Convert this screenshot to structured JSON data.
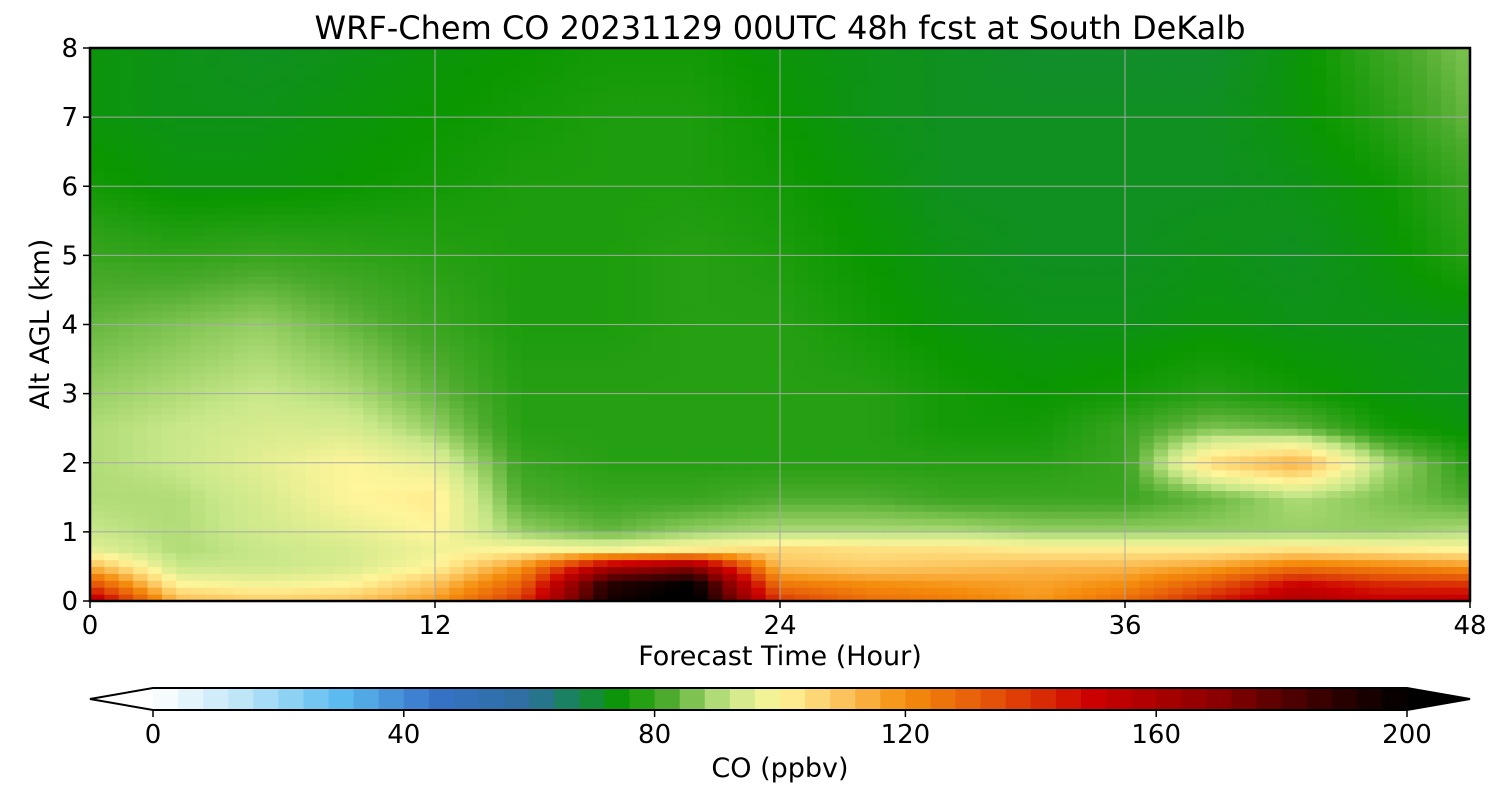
{
  "chart_data": {
    "type": "heatmap",
    "title": "WRF-Chem CO  20231129 00UTC 48h fcst at South DeKalb",
    "xlabel": "Forecast Time (Hour)",
    "ylabel": "Alt AGL (km)",
    "xlim": [
      0,
      48
    ],
    "ylim": [
      0,
      8
    ],
    "x_ticks": [
      0,
      12,
      24,
      36,
      48
    ],
    "y_ticks": [
      0,
      1,
      2,
      3,
      4,
      5,
      6,
      7,
      8
    ],
    "grid": true,
    "x_hours": [
      0,
      3,
      6,
      9,
      12,
      15,
      18,
      21,
      24,
      27,
      30,
      33,
      36,
      39,
      42,
      45,
      48
    ],
    "y_km": [
      0,
      0.25,
      0.5,
      0.75,
      1,
      1.5,
      2,
      2.5,
      3,
      4,
      5,
      6,
      7,
      8
    ],
    "z_ppbv": [
      [
        160,
        112,
        108,
        110,
        118,
        140,
        195,
        205,
        140,
        128,
        124,
        118,
        128,
        145,
        160,
        152,
        155
      ],
      [
        135,
        100,
        98,
        100,
        110,
        130,
        190,
        200,
        125,
        120,
        118,
        116,
        120,
        132,
        150,
        142,
        140
      ],
      [
        112,
        92,
        92,
        94,
        100,
        118,
        160,
        170,
        110,
        108,
        110,
        112,
        112,
        116,
        125,
        122,
        118
      ],
      [
        96,
        90,
        92,
        94,
        98,
        100,
        98,
        102,
        106,
        104,
        104,
        102,
        102,
        102,
        104,
        102,
        100
      ],
      [
        92,
        90,
        93,
        96,
        100,
        88,
        84,
        88,
        90,
        90,
        90,
        88,
        88,
        88,
        88,
        88,
        90
      ],
      [
        90,
        90,
        94,
        100,
        102,
        82,
        80,
        80,
        82,
        82,
        80,
        80,
        80,
        84,
        90,
        86,
        82
      ],
      [
        90,
        92,
        96,
        100,
        96,
        80,
        78,
        78,
        78,
        78,
        78,
        78,
        80,
        106,
        114,
        90,
        78
      ],
      [
        90,
        92,
        94,
        94,
        88,
        78,
        78,
        78,
        78,
        78,
        76,
        76,
        80,
        86,
        84,
        76,
        74
      ],
      [
        88,
        90,
        92,
        90,
        84,
        78,
        78,
        78,
        78,
        78,
        76,
        75,
        76,
        78,
        76,
        74,
        73
      ],
      [
        84,
        86,
        88,
        84,
        80,
        77,
        77,
        78,
        78,
        76,
        74,
        73,
        73,
        74,
        73,
        73,
        73
      ],
      [
        80,
        79,
        80,
        79,
        78,
        77,
        77,
        78,
        77,
        75,
        73,
        72,
        72,
        73,
        72,
        74,
        78
      ],
      [
        76,
        74,
        74,
        75,
        76,
        77,
        77,
        77,
        76,
        74,
        72,
        72,
        72,
        72,
        73,
        75,
        80
      ],
      [
        74,
        73,
        73,
        74,
        75,
        76,
        77,
        77,
        75,
        73,
        72,
        72,
        72,
        72,
        74,
        78,
        84
      ],
      [
        74,
        73,
        72,
        73,
        74,
        75,
        76,
        76,
        74,
        73,
        72,
        71,
        71,
        71,
        74,
        80,
        86
      ]
    ],
    "colorbar": {
      "label": "CO  (ppbv)",
      "min": 0,
      "max": 200,
      "ticks": [
        0,
        40,
        80,
        120,
        160,
        200
      ],
      "extend": "both",
      "colormap": [
        [
          0,
          "#ffffff"
        ],
        [
          15,
          "#b9e4f6"
        ],
        [
          30,
          "#5bbbf0"
        ],
        [
          45,
          "#3572c8"
        ],
        [
          60,
          "#2e6f9e"
        ],
        [
          65,
          "#1d7f6e"
        ],
        [
          75,
          "#0a9700"
        ],
        [
          82,
          "#4cab2c"
        ],
        [
          92,
          "#c9e88a"
        ],
        [
          100,
          "#fff59a"
        ],
        [
          110,
          "#fcc35c"
        ],
        [
          120,
          "#f58d0c"
        ],
        [
          135,
          "#e24e08"
        ],
        [
          150,
          "#cc0000"
        ],
        [
          170,
          "#8a0000"
        ],
        [
          185,
          "#3e0000"
        ],
        [
          200,
          "#000000"
        ]
      ]
    }
  }
}
